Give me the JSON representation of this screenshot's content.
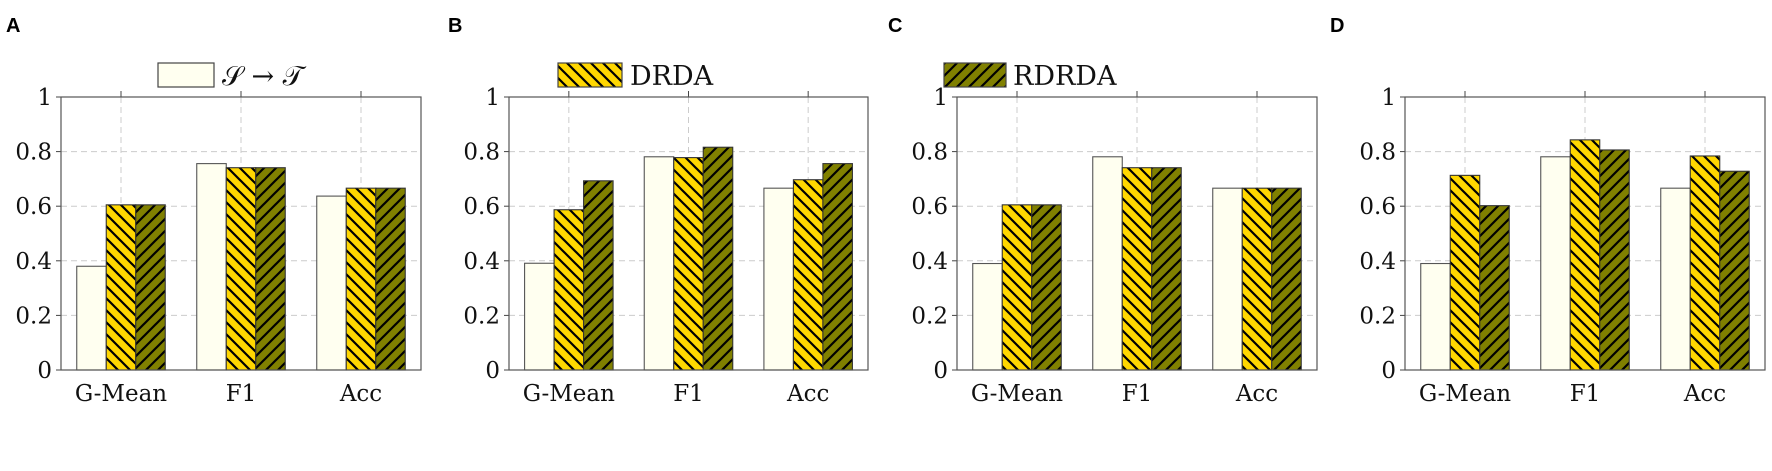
{
  "chart_data": [
    {
      "type": "bar",
      "panel": "A",
      "categories": [
        "G-Mean",
        "F1",
        "Acc"
      ],
      "ylim": [
        0,
        1
      ],
      "yticks": [
        "0",
        "0.2",
        "0.4",
        "0.6",
        "0.8",
        "1"
      ],
      "grid": true,
      "series": [
        {
          "name": "S → T",
          "values": [
            0.38,
            0.756,
            0.637
          ]
        },
        {
          "name": "DRDA",
          "values": [
            0.605,
            0.741,
            0.666
          ]
        },
        {
          "name": "RDRDA",
          "values": [
            0.605,
            0.741,
            0.666
          ]
        }
      ]
    },
    {
      "type": "bar",
      "panel": "B",
      "categories": [
        "G-Mean",
        "F1",
        "Acc"
      ],
      "ylim": [
        0,
        1
      ],
      "yticks": [
        "0",
        "0.2",
        "0.4",
        "0.6",
        "0.8",
        "1"
      ],
      "grid": true,
      "series": [
        {
          "name": "S → T",
          "values": [
            0.391,
            0.781,
            0.666
          ]
        },
        {
          "name": "DRDA",
          "values": [
            0.587,
            0.778,
            0.697
          ]
        },
        {
          "name": "RDRDA",
          "values": [
            0.693,
            0.816,
            0.756
          ]
        }
      ]
    },
    {
      "type": "bar",
      "panel": "C",
      "categories": [
        "G-Mean",
        "F1",
        "Acc"
      ],
      "ylim": [
        0,
        1
      ],
      "yticks": [
        "0",
        "0.2",
        "0.4",
        "0.6",
        "0.8",
        "1"
      ],
      "grid": true,
      "series": [
        {
          "name": "S → T",
          "values": [
            0.39,
            0.781,
            0.666
          ]
        },
        {
          "name": "DRDA",
          "values": [
            0.605,
            0.741,
            0.666
          ]
        },
        {
          "name": "RDRDA",
          "values": [
            0.605,
            0.741,
            0.666
          ]
        }
      ]
    },
    {
      "type": "bar",
      "panel": "D",
      "categories": [
        "G-Mean",
        "F1",
        "Acc"
      ],
      "ylim": [
        0,
        1
      ],
      "yticks": [
        "0",
        "0.2",
        "0.4",
        "0.6",
        "0.8",
        "1"
      ],
      "grid": true,
      "series": [
        {
          "name": "S → T",
          "values": [
            0.39,
            0.781,
            0.666
          ]
        },
        {
          "name": "DRDA",
          "values": [
            0.713,
            0.843,
            0.784
          ]
        },
        {
          "name": "RDRDA",
          "values": [
            0.602,
            0.806,
            0.728
          ]
        }
      ]
    }
  ],
  "legend": [
    {
      "label": "𝒮 → 𝒯",
      "color": "#FFFFF0"
    },
    {
      "label": "DRDA",
      "color": "#FFD700"
    },
    {
      "label": "RDRDA",
      "color": "#808000"
    }
  ],
  "legend_placement": "top",
  "colors": {
    "source": "#FFFFF0",
    "drda": "#FFD700",
    "rdrda": "#808000"
  }
}
